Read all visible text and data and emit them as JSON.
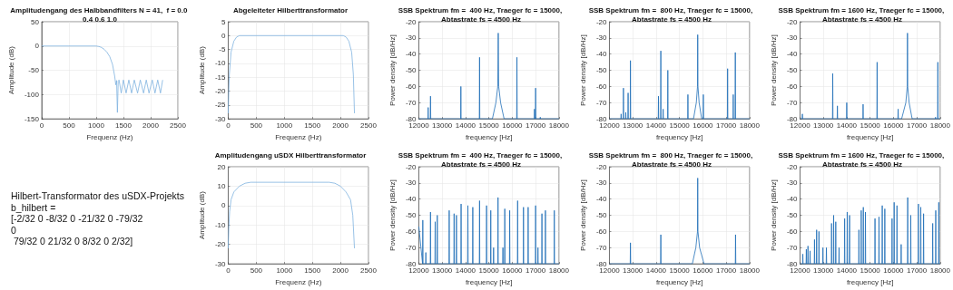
{
  "chart_data": [
    {
      "type": "line",
      "title": "Amplitudengang des Halbbandfilters N = 41,  f = 0.0 0.4 0.6 1.0",
      "xlabel": "Frequenz (Hz)",
      "ylabel": "Amplitude (dB)",
      "color": "#7fb2e0",
      "grid": true,
      "xlim": [
        0,
        2500
      ],
      "xticks": [
        0,
        500,
        1000,
        1500,
        2000,
        2500
      ],
      "ylim": [
        -150,
        50
      ],
      "yticks": [
        -150,
        -100,
        -50,
        0,
        50
      ],
      "x": [
        0,
        500,
        1000,
        1050,
        1100,
        1150,
        1200,
        1250,
        1300,
        1340,
        1360,
        1375,
        1390,
        1405,
        1420,
        1460,
        1500,
        1550,
        1600,
        1650,
        1700,
        1760,
        1810,
        1870,
        1920,
        1970,
        2030,
        2080,
        2130,
        2180,
        2220
      ],
      "values": [
        0,
        0,
        0,
        -1,
        -3,
        -7,
        -13,
        -22,
        -38,
        -62,
        -80,
        -71,
        -137,
        -72,
        -70,
        -97,
        -70,
        -97,
        -70,
        -97,
        -70,
        -97,
        -70,
        -97,
        -70,
        -97,
        -70,
        -97,
        -70,
        -97,
        -70
      ]
    },
    {
      "type": "line",
      "title": "Abgeleiteter Hilberttransformator",
      "xlabel": "Frequenz (Hz)",
      "ylabel": "Amplitude (dB)",
      "color": "#7fb2e0",
      "grid": true,
      "xlim": [
        0,
        2500
      ],
      "xticks": [
        0,
        500,
        1000,
        1500,
        2000,
        2500
      ],
      "ylim": [
        -30,
        5
      ],
      "yticks": [
        -30,
        -25,
        -20,
        -15,
        -10,
        -5,
        0,
        5
      ],
      "x": [
        0,
        10,
        20,
        50,
        100,
        150,
        200,
        2050,
        2100,
        2150,
        2200,
        2230,
        2250
      ],
      "values": [
        -28,
        -20,
        -14,
        -6,
        -2,
        -0.5,
        0,
        0,
        -0.5,
        -2,
        -6,
        -14,
        -28
      ]
    },
    {
      "type": "line",
      "title": "SSB Spektrum fm =  400 Hz, Traeger fc = 15000, Abtastrate fs = 4500 Hz",
      "xlabel": "frequency [Hz]",
      "ylabel": "Power density [dB/Hz]",
      "color": "#1f6fb8",
      "grid": true,
      "xlim": [
        12000,
        18000
      ],
      "xticks": [
        12000,
        13000,
        14000,
        15000,
        16000,
        17000,
        18000
      ],
      "ylim": [
        -80,
        -20
      ],
      "yticks": [
        -80,
        -70,
        -60,
        -50,
        -40,
        -30,
        -20
      ],
      "x": [
        12000,
        12390,
        12400,
        12410,
        12490,
        12500,
        12510,
        13790,
        13800,
        13810,
        14590,
        14600,
        14610,
        15150,
        15300,
        15380,
        15400,
        15420,
        15500,
        15650,
        16190,
        16200,
        16210,
        16940,
        16950,
        16960,
        16990,
        17000,
        17010,
        17190,
        17200,
        17210,
        18000
      ],
      "values": [
        -80,
        -80,
        -73,
        -80,
        -80,
        -66,
        -80,
        -80,
        -60,
        -80,
        -80,
        -42,
        -80,
        -80,
        -70,
        -60,
        -27,
        -60,
        -70,
        -80,
        -80,
        -42,
        -80,
        -80,
        -74,
        -80,
        -80,
        -61,
        -80,
        -80,
        -79,
        -80,
        -80
      ]
    },
    {
      "type": "line",
      "title": "SSB Spektrum fm =  800 Hz, Traeger fc = 15000, Abtastrate fs = 4500 Hz",
      "xlabel": "frequency [Hz]",
      "ylabel": "Power density [dB/Hz]",
      "color": "#1f6fb8",
      "grid": true,
      "xlim": [
        12000,
        18000
      ],
      "xticks": [
        12000,
        13000,
        14000,
        15000,
        16000,
        17000,
        18000
      ],
      "ylim": [
        -80,
        -20
      ],
      "yticks": [
        -80,
        -70,
        -60,
        -50,
        -40,
        -30,
        -20
      ],
      "x": [
        12000,
        12490,
        12500,
        12510,
        12590,
        12600,
        12610,
        12690,
        12700,
        12710,
        12790,
        12800,
        12810,
        12890,
        12900,
        12910,
        14090,
        14100,
        14110,
        14190,
        14200,
        14210,
        14290,
        14300,
        14310,
        14490,
        14500,
        14510,
        15350,
        15360,
        15370,
        15600,
        15720,
        15770,
        15780,
        15790,
        15840,
        15950,
        16010,
        16020,
        16030,
        17050,
        17060,
        17070,
        17290,
        17300,
        17310,
        17380,
        17390,
        17400,
        18000
      ],
      "values": [
        -80,
        -80,
        -77,
        -80,
        -80,
        -61,
        -80,
        -80,
        -76,
        -80,
        -80,
        -64,
        -80,
        -80,
        -44,
        -80,
        -80,
        -66,
        -80,
        -80,
        -38,
        -80,
        -80,
        -74,
        -80,
        -80,
        -50,
        -80,
        -80,
        -65,
        -80,
        -80,
        -70,
        -60,
        -28,
        -60,
        -70,
        -80,
        -80,
        -65,
        -80,
        -80,
        -49,
        -80,
        -80,
        -65,
        -80,
        -80,
        -39,
        -80,
        -80
      ]
    },
    {
      "type": "line",
      "title": "SSB Spektrum fm = 1600 Hz, Traeger fc = 15000, Abtastrate fs = 4500 Hz",
      "xlabel": "frequency [Hz]",
      "ylabel": "Power density [dB/Hz]",
      "color": "#1f6fb8",
      "grid": true,
      "xlim": [
        12000,
        18000
      ],
      "xticks": [
        12000,
        13000,
        14000,
        15000,
        16000,
        17000,
        18000
      ],
      "ylim": [
        -80,
        -20
      ],
      "yticks": [
        -80,
        -70,
        -60,
        -50,
        -40,
        -30,
        -20
      ],
      "x": [
        12000,
        12090,
        12100,
        12110,
        13390,
        13400,
        13410,
        13590,
        13600,
        13610,
        13990,
        14000,
        14010,
        14690,
        14700,
        14710,
        15290,
        15300,
        15310,
        16190,
        16200,
        16210,
        16350,
        16530,
        16590,
        16600,
        16610,
        16670,
        16800,
        17790,
        17800,
        17810,
        17890,
        17900,
        17910,
        18000
      ],
      "values": [
        -80,
        -80,
        -77,
        -80,
        -80,
        -52,
        -80,
        -80,
        -72,
        -80,
        -80,
        -70,
        -80,
        -80,
        -71,
        -80,
        -80,
        -45,
        -80,
        -80,
        -74,
        -80,
        -80,
        -70,
        -60,
        -27,
        -60,
        -70,
        -80,
        -80,
        -79,
        -80,
        -80,
        -45,
        -80,
        -80
      ]
    },
    {
      "type": "other",
      "annotations": [
        "Hilbert-Transformator des uSDX-Projekts",
        "b_hilbert =",
        "[-2/32 0 -8/32 0 -21/32 0 -79/32",
        "0",
        " 79/32 0 21/32 0 8/32 0 2/32]"
      ]
    },
    {
      "type": "line",
      "title": "Amplitudengang uSDX Hilberttransformator",
      "xlabel": "Frequenz (Hz)",
      "ylabel": "Amplitude (dB)",
      "color": "#7fb2e0",
      "grid": true,
      "xlim": [
        0,
        2500
      ],
      "xticks": [
        0,
        500,
        1000,
        1500,
        2000,
        2500
      ],
      "ylim": [
        -30,
        20
      ],
      "yticks": [
        -30,
        -20,
        -10,
        0,
        10,
        20
      ],
      "x": [
        0,
        10,
        25,
        50,
        100,
        200,
        300,
        400,
        1800,
        1900,
        2000,
        2100,
        2180,
        2220,
        2250
      ],
      "values": [
        -22,
        -12,
        -3,
        3,
        7,
        10,
        11.5,
        12,
        12,
        11.5,
        10,
        7,
        3,
        -5,
        -22
      ]
    },
    {
      "type": "line",
      "title": "SSB Spektrum fm =  400 Hz, Traeger fc = 15000, Abtastrate fs = 4500 Hz",
      "xlabel": "frequency [Hz]",
      "ylabel": "Power density [dB/Hz]",
      "color": "#1f6fb8",
      "grid": true,
      "xlim": [
        12000,
        18000
      ],
      "xticks": [
        12000,
        13000,
        14000,
        15000,
        16000,
        17000,
        18000
      ],
      "ylim": [
        -80,
        -20
      ],
      "yticks": [
        -80,
        -70,
        -60,
        -50,
        -40,
        -30,
        -20
      ],
      "x": [
        12000,
        12160,
        12170,
        12180,
        12290,
        12300,
        12310,
        12490,
        12500,
        12510,
        12690,
        12700,
        12710,
        12780,
        12790,
        12800,
        13290,
        13300,
        13310,
        13500,
        13510,
        13520,
        13600,
        13610,
        13620,
        13800,
        13810,
        13820,
        14090,
        14100,
        14110,
        14300,
        14310,
        14320,
        14590,
        14600,
        14610,
        14890,
        14900,
        14910,
        15070,
        15080,
        15090,
        15190,
        15200,
        15210,
        15380,
        15390,
        15400,
        15590,
        15600,
        15610,
        15670,
        15680,
        15690,
        15880,
        15890,
        15900,
        16220,
        16230,
        16240,
        16470,
        16480,
        16490,
        16670,
        16680,
        16690,
        16990,
        17000,
        17010,
        17090,
        17100,
        17110,
        17260,
        17270,
        17280,
        17410,
        17420,
        17430,
        17790,
        17800,
        17810,
        18000
      ],
      "values": [
        -57,
        -80,
        -53,
        -80,
        -80,
        -73,
        -80,
        -80,
        -48,
        -80,
        -80,
        -54,
        -80,
        -80,
        -50,
        -80,
        -80,
        -47,
        -80,
        -80,
        -49,
        -80,
        -80,
        -50,
        -80,
        -80,
        -43,
        -80,
        -80,
        -44,
        -80,
        -80,
        -45,
        -80,
        -80,
        -41,
        -80,
        -80,
        -44,
        -80,
        -80,
        -47,
        -80,
        -80,
        -70,
        -80,
        -80,
        -39,
        -80,
        -80,
        -70,
        -80,
        -80,
        -46,
        -80,
        -80,
        -47,
        -80,
        -80,
        -41,
        -80,
        -80,
        -45,
        -80,
        -80,
        -45,
        -80,
        -80,
        -44,
        -80,
        -80,
        -70,
        -80,
        -80,
        -49,
        -80,
        -80,
        -47,
        -80,
        -80,
        -47,
        -80,
        -80
      ]
    },
    {
      "type": "line",
      "title": "SSB Spektrum fm =  800 Hz, Traeger fc = 15000, Abtastrate fs = 4500 Hz",
      "xlabel": "frequency [Hz]",
      "ylabel": "Power density [dB/Hz]",
      "color": "#1f6fb8",
      "grid": true,
      "xlim": [
        12000,
        18000
      ],
      "xticks": [
        12000,
        13000,
        14000,
        15000,
        16000,
        17000,
        18000
      ],
      "ylim": [
        -80,
        -20
      ],
      "yticks": [
        -80,
        -70,
        -60,
        -50,
        -40,
        -30,
        -20
      ],
      "x": [
        12000,
        12890,
        12900,
        12910,
        14190,
        14200,
        14210,
        15550,
        15700,
        15770,
        15780,
        15790,
        15860,
        16050,
        17390,
        17400,
        17410,
        18000
      ],
      "values": [
        -80,
        -80,
        -67,
        -80,
        -80,
        -62,
        -80,
        -80,
        -70,
        -60,
        -27,
        -60,
        -70,
        -80,
        -80,
        -62,
        -80,
        -80
      ]
    },
    {
      "type": "line",
      "title": "SSB Spektrum fm = 1600 Hz, Traeger fc = 15000, Abtastrate fs = 4500 Hz",
      "xlabel": "frequency [Hz]",
      "ylabel": "Power density [dB/Hz]",
      "color": "#1f6fb8",
      "grid": true,
      "xlim": [
        12000,
        18000
      ],
      "xticks": [
        12000,
        13000,
        14000,
        15000,
        16000,
        17000,
        18000
      ],
      "ylim": [
        -80,
        -20
      ],
      "yticks": [
        -80,
        -70,
        -60,
        -50,
        -40,
        -30,
        -20
      ],
      "x": [
        12000,
        12110,
        12120,
        12130,
        12260,
        12270,
        12280,
        12330,
        12340,
        12350,
        12420,
        12430,
        12440,
        12610,
        12620,
        12630,
        12700,
        12710,
        12720,
        12800,
        12810,
        12820,
        12970,
        12980,
        12990,
        13120,
        13130,
        13140,
        13340,
        13350,
        13360,
        13430,
        13440,
        13450,
        13520,
        13530,
        13540,
        13660,
        13670,
        13680,
        13900,
        13910,
        13920,
        14010,
        14020,
        14030,
        14110,
        14120,
        14130,
        14510,
        14520,
        14530,
        14610,
        14620,
        14630,
        14700,
        14710,
        14720,
        14790,
        14800,
        14810,
        15200,
        15210,
        15220,
        15370,
        15380,
        15390,
        15510,
        15520,
        15530,
        15620,
        15630,
        15640,
        15930,
        15940,
        15950,
        16020,
        16030,
        16040,
        16140,
        16150,
        16160,
        16320,
        16330,
        16340,
        16600,
        16610,
        16620,
        16730,
        16740,
        16750,
        17060,
        17070,
        17080,
        17160,
        17170,
        17180,
        17280,
        17290,
        17300,
        17670,
        17680,
        17690,
        17800,
        17810,
        17820,
        17930,
        17940,
        17950,
        18000
      ],
      "values": [
        -80,
        -80,
        -74,
        -80,
        -80,
        -71,
        -80,
        -80,
        -69,
        -80,
        -80,
        -72,
        -80,
        -80,
        -65,
        -80,
        -80,
        -59,
        -80,
        -80,
        -60,
        -80,
        -80,
        -70,
        -80,
        -80,
        -70,
        -80,
        -80,
        -55,
        -80,
        -80,
        -50,
        -80,
        -80,
        -54,
        -80,
        -80,
        -70,
        -80,
        -80,
        -52,
        -80,
        -80,
        -48,
        -80,
        -80,
        -50,
        -80,
        -80,
        -59,
        -80,
        -80,
        -47,
        -80,
        -80,
        -45,
        -80,
        -80,
        -48,
        -80,
        -80,
        -52,
        -80,
        -80,
        -51,
        -80,
        -80,
        -44,
        -80,
        -80,
        -46,
        -80,
        -80,
        -52,
        -80,
        -80,
        -42,
        -80,
        -80,
        -44,
        -80,
        -80,
        -68,
        -80,
        -80,
        -39,
        -80,
        -80,
        -50,
        -80,
        -80,
        -43,
        -80,
        -80,
        -45,
        -80,
        -80,
        -49,
        -80,
        -80,
        -55,
        -80,
        -80,
        -47,
        -80,
        -80,
        -42,
        -80,
        -80
      ]
    }
  ]
}
